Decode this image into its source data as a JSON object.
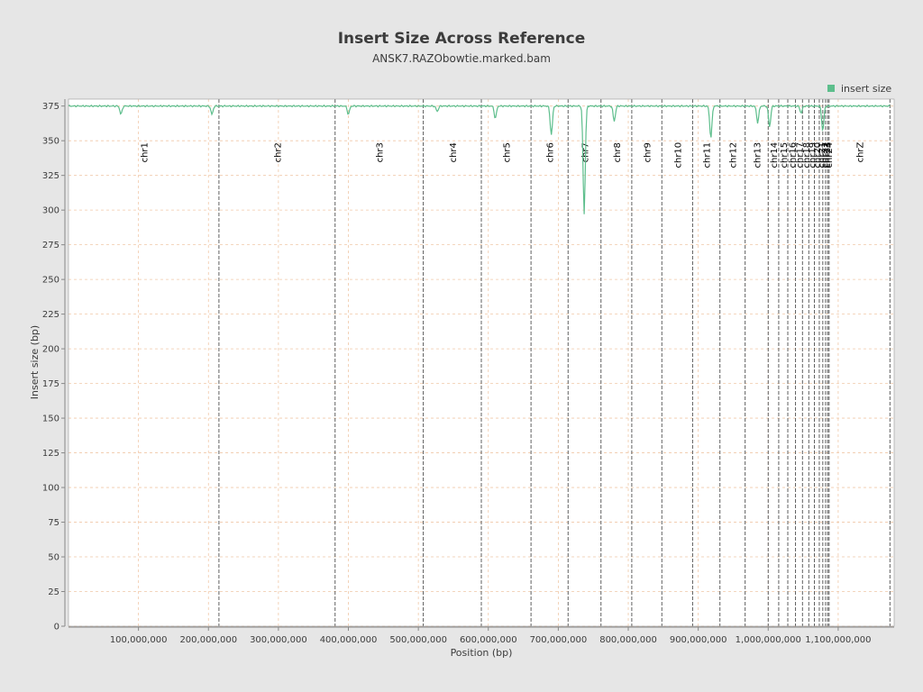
{
  "colors": {
    "background": "#e6e6e6",
    "plot_bg": "#ffffff",
    "line": "#5dbe8c",
    "grid": "#f0c8a8",
    "chr_divider": "#606060",
    "legend_swatch": "#5dbe8c"
  },
  "chart_data": {
    "type": "line",
    "title": "Insert Size Across Reference",
    "subtitle": "ANSK7.RAZObowtie.marked.bam",
    "xlabel": "Position (bp)",
    "ylabel": "Insert size (bp)",
    "xlim": [
      0,
      1180000000
    ],
    "ylim": [
      0,
      380
    ],
    "x_ticks": [
      100000000,
      200000000,
      300000000,
      400000000,
      500000000,
      600000000,
      700000000,
      800000000,
      900000000,
      1000000000,
      1100000000
    ],
    "x_tick_labels": [
      "100,000,000",
      "200,000,000",
      "300,000,000",
      "400,000,000",
      "500,000,000",
      "600,000,000",
      "700,000,000",
      "800,000,000",
      "900,000,000",
      "1,000,000,000",
      "1,100,000,000"
    ],
    "y_ticks": [
      0,
      25,
      50,
      75,
      100,
      125,
      150,
      175,
      200,
      225,
      250,
      275,
      300,
      325,
      350,
      375
    ],
    "grid": true,
    "legend_position": "top-right",
    "series": [
      {
        "name": "insert size",
        "baseline": 375,
        "dips": [
          {
            "x": 75000000,
            "y": 369
          },
          {
            "x": 205000000,
            "y": 369
          },
          {
            "x": 400000000,
            "y": 369
          },
          {
            "x": 527000000,
            "y": 371
          },
          {
            "x": 610000000,
            "y": 366
          },
          {
            "x": 690000000,
            "y": 354
          },
          {
            "x": 737000000,
            "y": 297
          },
          {
            "x": 780000000,
            "y": 364
          },
          {
            "x": 918000000,
            "y": 352
          },
          {
            "x": 985000000,
            "y": 363
          },
          {
            "x": 1002000000,
            "y": 360
          },
          {
            "x": 1047000000,
            "y": 370
          },
          {
            "x": 1078000000,
            "y": 357
          }
        ]
      }
    ],
    "chromosomes": [
      {
        "name": "chr1",
        "start": 0,
        "end": 215000000
      },
      {
        "name": "chr2",
        "start": 215000000,
        "end": 381000000
      },
      {
        "name": "chr3",
        "start": 381000000,
        "end": 507000000
      },
      {
        "name": "chr4",
        "start": 507000000,
        "end": 590000000
      },
      {
        "name": "chr5",
        "start": 590000000,
        "end": 661000000
      },
      {
        "name": "chr6",
        "start": 661000000,
        "end": 714000000
      },
      {
        "name": "chr7",
        "start": 714000000,
        "end": 761000000
      },
      {
        "name": "chr8",
        "start": 761000000,
        "end": 805000000
      },
      {
        "name": "chr9",
        "start": 805000000,
        "end": 848000000
      },
      {
        "name": "chr10",
        "start": 848000000,
        "end": 892000000
      },
      {
        "name": "chr11",
        "start": 892000000,
        "end": 931000000
      },
      {
        "name": "chr12",
        "start": 931000000,
        "end": 967000000
      },
      {
        "name": "chr13",
        "start": 967000000,
        "end": 1000000000
      },
      {
        "name": "chr14",
        "start": 1000000000,
        "end": 1015000000
      },
      {
        "name": "chr15",
        "start": 1015000000,
        "end": 1028000000
      },
      {
        "name": "chr16",
        "start": 1028000000,
        "end": 1039000000
      },
      {
        "name": "chr17",
        "start": 1039000000,
        "end": 1049000000
      },
      {
        "name": "chr18",
        "start": 1049000000,
        "end": 1058000000
      },
      {
        "name": "chr19",
        "start": 1058000000,
        "end": 1066000000
      },
      {
        "name": "chr20",
        "start": 1066000000,
        "end": 1073000000
      },
      {
        "name": "chr21",
        "start": 1073000000,
        "end": 1078000000
      },
      {
        "name": "chr22",
        "start": 1078000000,
        "end": 1082000000
      },
      {
        "name": "chr23",
        "start": 1082000000,
        "end": 1085000000
      },
      {
        "name": "chr24",
        "start": 1085000000,
        "end": 1087000000
      },
      {
        "name": "chrZ",
        "start": 1087000000,
        "end": 1174000000
      }
    ]
  }
}
